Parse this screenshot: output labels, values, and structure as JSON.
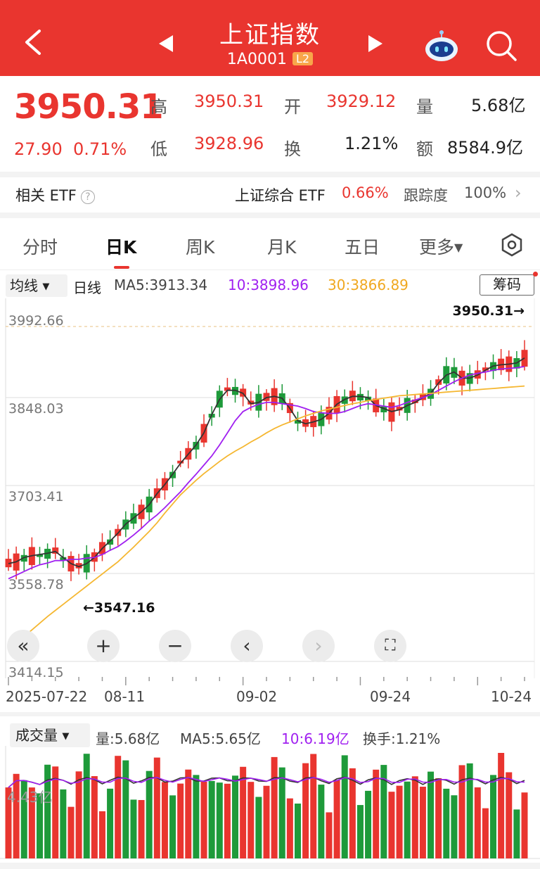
{
  "header": {
    "title": "上证指数",
    "code": "1A0001",
    "level": "L2"
  },
  "quote": {
    "price": "3950.31",
    "change": "27.90",
    "change_pct": "0.71%",
    "high_label": "高",
    "high": "3950.31",
    "low_label": "低",
    "low": "3928.96",
    "open_label": "开",
    "open": "3929.12",
    "turnover_label": "换",
    "turnover": "1.21%",
    "volume_label": "量",
    "volume": "5.68亿",
    "amount_label": "额",
    "amount": "8584.9亿"
  },
  "etf": {
    "label": "相关 ETF",
    "fund": "上证综合 ETF",
    "fund_pct": "0.66%",
    "tracking_label": "跟踪度",
    "tracking": "100%"
  },
  "tabs": [
    "分时",
    "日K",
    "周K",
    "月K",
    "五日",
    "更多"
  ],
  "ma": {
    "select": "均线",
    "period": "日线",
    "ma5": "MA5:3913.34",
    "ma10": "10:3898.96",
    "ma30": "30:3866.89",
    "chip_button": "筹码"
  },
  "colors": {
    "up": "#e9352f",
    "down": "#1e9a3a",
    "ma5": "#333333",
    "ma10": "#a020f0",
    "ma30": "#f5b731"
  },
  "chart_data": [
    {
      "type": "candlestick",
      "y_ticks": [
        "3992.66",
        "3848.03",
        "3703.41",
        "3558.78",
        "3414.15"
      ],
      "ylim": [
        3414.15,
        3992.66
      ],
      "x_labels": [
        "2025-07-22",
        "08-11",
        "09-02",
        "09-24",
        "10-24"
      ],
      "high_marker": "3950.31→",
      "low_marker": "←3547.16",
      "series": [
        {
          "name": "MA5",
          "values": [
            3575,
            3578,
            3585,
            3588,
            3590,
            3592,
            3595,
            3585,
            3575,
            3570,
            3575,
            3585,
            3600,
            3612,
            3625,
            3640,
            3650,
            3660,
            3672,
            3690,
            3705,
            3722,
            3740,
            3755,
            3770,
            3790,
            3820,
            3845,
            3860,
            3860,
            3855,
            3838,
            3840,
            3848,
            3850,
            3847,
            3830,
            3810,
            3805,
            3808,
            3812,
            3822,
            3837,
            3845,
            3850,
            3850,
            3848,
            3835,
            3830,
            3825,
            3828,
            3835,
            3840,
            3848,
            3855,
            3872,
            3885,
            3890,
            3880,
            3880,
            3885,
            3893,
            3900,
            3902,
            3903,
            3905,
            3913
          ]
        },
        {
          "name": "10",
          "values": [
            3550,
            3556,
            3562,
            3568,
            3573,
            3576,
            3580,
            3580,
            3582,
            3582,
            3584,
            3585,
            3590,
            3597,
            3603,
            3612,
            3622,
            3633,
            3645,
            3655,
            3667,
            3680,
            3693,
            3708,
            3722,
            3737,
            3752,
            3770,
            3790,
            3810,
            3825,
            3832,
            3837,
            3840,
            3840,
            3838,
            3836,
            3834,
            3830,
            3825,
            3823,
            3822,
            3822,
            3825,
            3830,
            3835,
            3838,
            3836,
            3834,
            3832,
            3835,
            3840,
            3844,
            3848,
            3853,
            3860,
            3867,
            3874,
            3880,
            3885,
            3888,
            3890,
            3893,
            3895,
            3896,
            3897,
            3899
          ]
        },
        {
          "name": "30",
          "values": [
            3434,
            3444,
            3455,
            3466,
            3477,
            3488,
            3498,
            3508,
            3518,
            3528,
            3538,
            3548,
            3558,
            3568,
            3578,
            3590,
            3602,
            3615,
            3628,
            3642,
            3658,
            3673,
            3688,
            3700,
            3712,
            3723,
            3733,
            3743,
            3752,
            3760,
            3767,
            3775,
            3782,
            3790,
            3797,
            3803,
            3808,
            3813,
            3818,
            3822,
            3826,
            3829,
            3832,
            3835,
            3838,
            3840,
            3843,
            3845,
            3847,
            3849,
            3851,
            3852,
            3853,
            3854,
            3855,
            3856,
            3857,
            3858,
            3859,
            3860,
            3861,
            3862,
            3863,
            3864,
            3865,
            3866,
            3867
          ]
        }
      ]
    },
    {
      "type": "bar",
      "title": "成交量",
      "volume": "量:5.68亿",
      "ma5": "MA5:5.65亿",
      "ma10": "10:6.19亿",
      "turnover": "换手:1.21%",
      "axis_label": "4.43亿"
    }
  ]
}
